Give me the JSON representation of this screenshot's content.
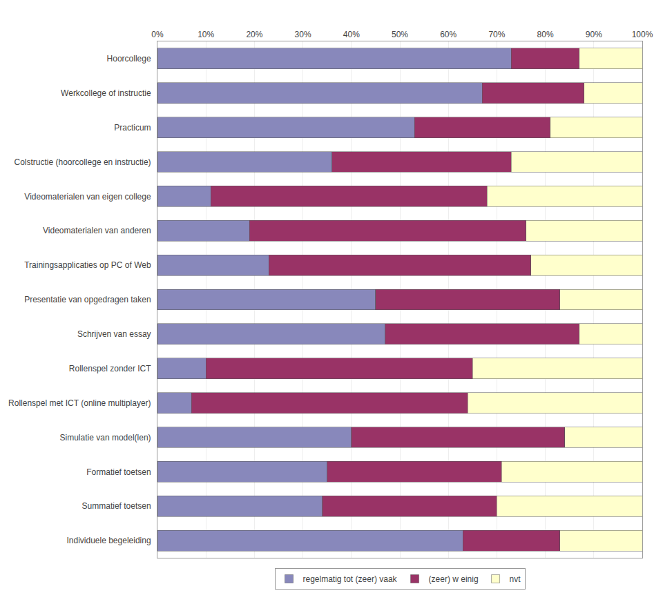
{
  "chart_data": {
    "type": "bar",
    "orientation": "horizontal",
    "stacked": true,
    "categories": [
      "Hoorcollege",
      "Werkcollege of instructie",
      "Practicum",
      "Colstructie (hoorcollege en instructie)",
      "Videomaterialen van eigen college",
      "Videomaterialen van anderen",
      "Trainingsapplicaties op PC of Web",
      "Presentatie van opgedragen taken",
      "Schrijven van essay",
      "Rollenspel zonder ICT",
      "Rollenspel met ICT (online multiplayer)",
      "Simulatie van model(len)",
      "Formatief toetsen",
      "Summatief toetsen",
      "Individuele begeleiding"
    ],
    "series": [
      {
        "name": "regelmatig tot (zeer) vaak",
        "color": "#8888bb",
        "values": [
          73,
          67,
          53,
          36,
          11,
          19,
          23,
          45,
          47,
          10,
          7,
          40,
          35,
          34,
          63
        ]
      },
      {
        "name": "(zeer) w einig",
        "color": "#993366",
        "values": [
          14,
          21,
          28,
          37,
          57,
          57,
          54,
          38,
          40,
          55,
          57,
          44,
          36,
          36,
          20
        ]
      },
      {
        "name": "nvt",
        "color": "#ffffcc",
        "values": [
          13,
          12,
          19,
          27,
          32,
          24,
          23,
          17,
          13,
          35,
          36,
          16,
          29,
          30,
          17
        ]
      }
    ],
    "xlim": [
      0,
      100
    ],
    "xticks": [
      {
        "value": 0,
        "label": "0%"
      },
      {
        "value": 10,
        "label": "10%"
      },
      {
        "value": 20,
        "label": "20%"
      },
      {
        "value": 30,
        "label": "30%"
      },
      {
        "value": 40,
        "label": "40%"
      },
      {
        "value": 50,
        "label": "50%"
      },
      {
        "value": 60,
        "label": "60%"
      },
      {
        "value": 70,
        "label": "70%"
      },
      {
        "value": 80,
        "label": "80%"
      },
      {
        "value": 90,
        "label": "90%"
      },
      {
        "value": 100,
        "label": "100%"
      }
    ],
    "grid": true,
    "legend": "bottom"
  }
}
